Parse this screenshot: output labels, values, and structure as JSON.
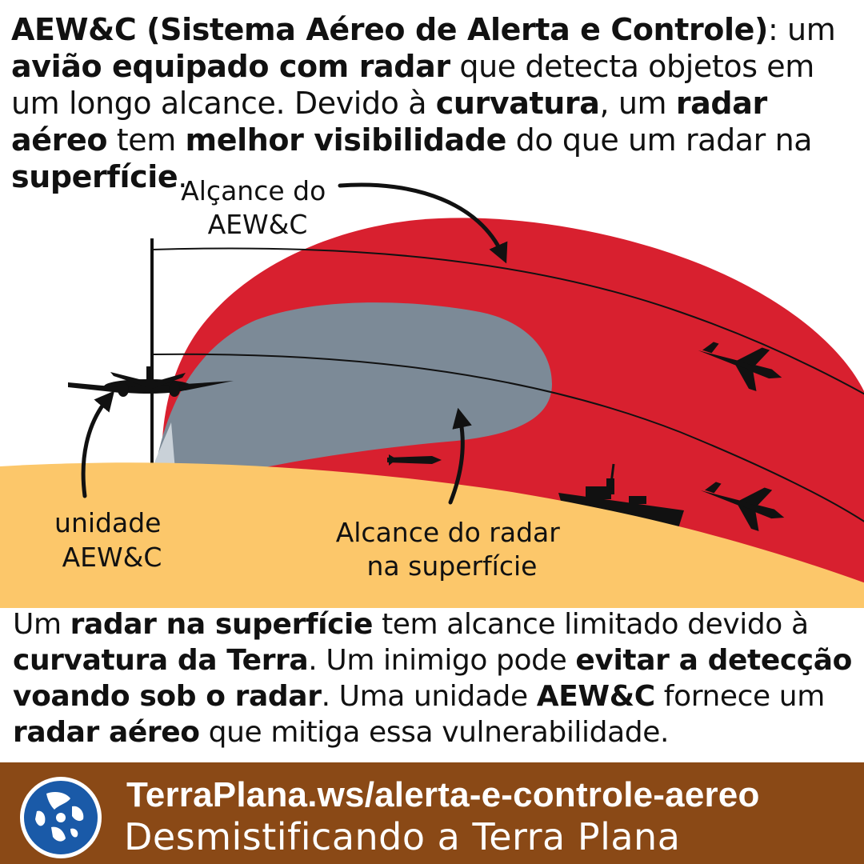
{
  "intro": [
    {
      "text": "AEW&C (Sistema Aéreo de Alerta e Controle)",
      "bold": true
    },
    {
      "text": ": um ",
      "bold": false
    },
    {
      "text": "avião equipado com radar",
      "bold": true
    },
    {
      "text": " que detecta objetos em um longo alcance. Devido à ",
      "bold": false
    },
    {
      "text": "curvatura",
      "bold": true
    },
    {
      "text": ", um  ",
      "bold": false
    },
    {
      "text": "radar aéreo",
      "bold": true
    },
    {
      "text": " tem ",
      "bold": false
    },
    {
      "text": "melhor visibilidade",
      "bold": true
    },
    {
      "text": " do que um radar na ",
      "bold": false
    },
    {
      "text": "superfície",
      "bold": true
    },
    {
      "text": ".",
      "bold": false
    }
  ],
  "labels": {
    "aewc_range": [
      "Alçance do",
      "AEW&C"
    ],
    "aewc_unit": [
      "unidade",
      "AEW&C"
    ],
    "surface_range": [
      "Alcance do radar",
      "na superfície"
    ]
  },
  "outro": [
    {
      "text": "Um ",
      "bold": false
    },
    {
      "text": "radar na superfície",
      "bold": true
    },
    {
      "text": " tem alcance limitado devido à ",
      "bold": false
    },
    {
      "text": "curvatura da Terra",
      "bold": true
    },
    {
      "text": ". Um inimigo pode ",
      "bold": false
    },
    {
      "text": "evitar a detecção voando sob o radar",
      "bold": true
    },
    {
      "text": ". Uma unidade ",
      "bold": false
    },
    {
      "text": "AEW&C",
      "bold": true
    },
    {
      "text": " fornece um ",
      "bold": false
    },
    {
      "text": "radar aéreo",
      "bold": true
    },
    {
      "text": " que mitiga essa vulnerabilidade.",
      "bold": false
    }
  ],
  "footer": {
    "url": "TerraPlana.ws/alerta-e-controle-aereo",
    "tagline": "Desmistificando a Terra Plana",
    "logo_icon": "flat-earth-map-icon"
  },
  "colors": {
    "aewc_zone": "#d8202f",
    "surface_zone": "#7c8a97",
    "ground": "#fcc76a",
    "footer_bg": "#8a4916",
    "logo_ocean": "#1a5aa8"
  }
}
